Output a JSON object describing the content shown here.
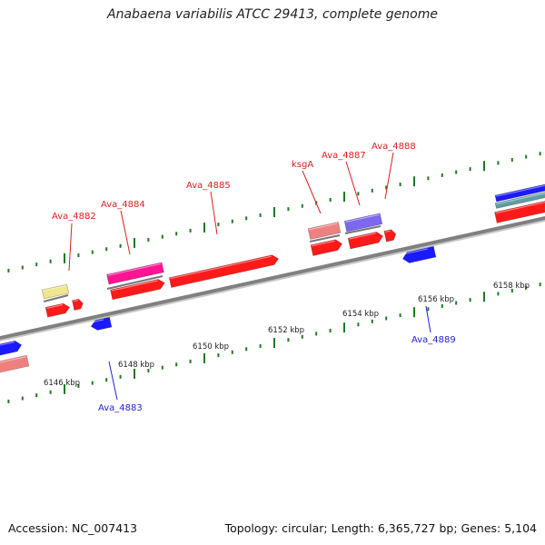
{
  "title": "Anabaena variabilis ATCC 29413, complete genome",
  "footer": {
    "accession": "Accession: NC_007413",
    "summary": "Topology: circular; Length: 6,365,727 bp; Genes: 5,104"
  },
  "scale": {
    "unit": "kbp",
    "ticks": [
      "6146 kbp",
      "6148 kbp",
      "6150 kbp",
      "6152 kbp",
      "6154 kbp",
      "6156 kbp",
      "6158 kbp"
    ]
  },
  "genes": [
    {
      "id": "g1",
      "label": "Ava_4882",
      "label_color": "#dd2020",
      "strand": "+",
      "color": "#f0e68c"
    },
    {
      "id": "g2",
      "label": "Ava_4883",
      "label_color": "#2222cc",
      "strand": "-",
      "color": "#1a1aff"
    },
    {
      "id": "g3",
      "label": "Ava_4884",
      "label_color": "#dd2020",
      "strand": "+",
      "color": "#ff1493"
    },
    {
      "id": "g4",
      "label": "Ava_4885",
      "label_color": "#dd2020",
      "strand": "+",
      "color": "#ff1a1a"
    },
    {
      "id": "g5",
      "label": "ksgA",
      "label_color": "#dd2020",
      "strand": "+",
      "color": "#f08080"
    },
    {
      "id": "g6",
      "label": "Ava_4887",
      "label_color": "#dd2020",
      "strand": "+",
      "color": "#7b68ee"
    },
    {
      "id": "g7",
      "label": "Ava_4888",
      "label_color": "#dd2020",
      "strand": "+",
      "color": "#ff1a1a"
    },
    {
      "id": "g8",
      "label": "Ava_4889",
      "label_color": "#2222cc",
      "strand": "-",
      "color": "#1a1aff"
    }
  ],
  "colors": {
    "backbone": "#808080",
    "tick": "#1e7a1e",
    "gene_red": "#ff1a1a",
    "gene_blue": "#1a1aff",
    "gene_salmon": "#f08080",
    "teal": "#5f9ea0"
  }
}
